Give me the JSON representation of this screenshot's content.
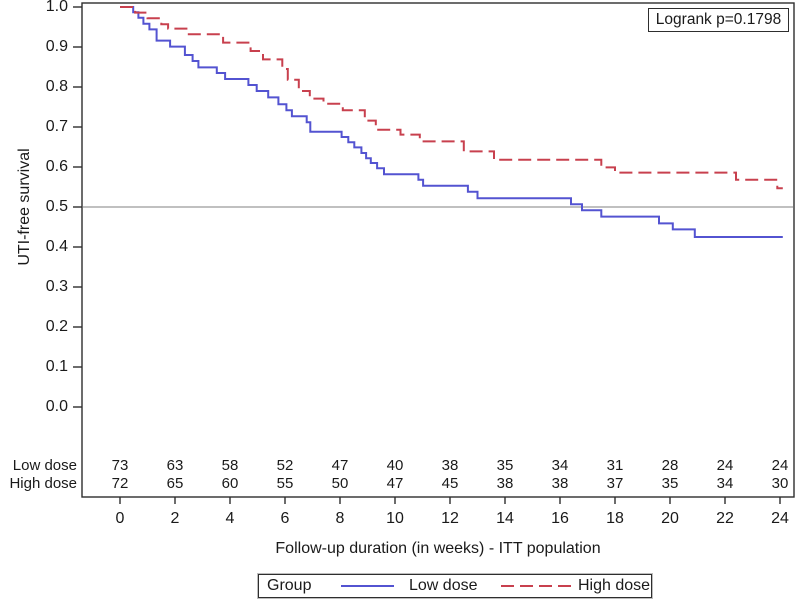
{
  "annotation": {
    "p_value": "Logrank p=0.1798"
  },
  "y_axis": {
    "title": "UTI-free survival",
    "tick_labels": [
      "1.0",
      "0.9",
      "0.8",
      "0.7",
      "0.6",
      "0.5",
      "0.4",
      "0.3",
      "0.2",
      "0.1",
      "0.0"
    ]
  },
  "x_axis": {
    "title": "Follow-up duration (in weeks) - ITT population",
    "tick_labels": [
      "0",
      "2",
      "4",
      "6",
      "8",
      "10",
      "12",
      "14",
      "16",
      "18",
      "20",
      "22",
      "24"
    ]
  },
  "legend": {
    "title": "Group",
    "entries": [
      {
        "label": "Low dose",
        "color": "#5353d1",
        "style": "solid"
      },
      {
        "label": "High dose",
        "color": "#c8404e",
        "style": "dashed"
      }
    ]
  },
  "colors": {
    "frame": "#2e2e2e",
    "reference_line": "#9a9a9a",
    "low_dose": "#5353d1",
    "high_dose": "#c8404e"
  },
  "chart_data": {
    "type": "line",
    "subtype": "kaplan-meier-step",
    "title": "",
    "xlabel": "Follow-up duration (in weeks) - ITT population",
    "ylabel": "UTI-free survival",
    "xlim": [
      0,
      24
    ],
    "ylim": [
      0.0,
      1.0
    ],
    "x_tick_step": 2,
    "y_tick_step": 0.1,
    "grid": false,
    "reference_line_y": 0.5,
    "end_of_followup_week": 24.1,
    "annotation": "Logrank p=0.1798",
    "legend_position": "bottom",
    "series": [
      {
        "name": "Low dose",
        "color": "#5353d1",
        "line_style": "solid",
        "points": [
          [
            0,
            1.0
          ],
          [
            0.48,
            0.987
          ],
          [
            0.67,
            0.973
          ],
          [
            0.85,
            0.958
          ],
          [
            1.07,
            0.944
          ],
          [
            1.33,
            0.916
          ],
          [
            1.82,
            0.901
          ],
          [
            2.36,
            0.88
          ],
          [
            2.64,
            0.865
          ],
          [
            2.85,
            0.849
          ],
          [
            3.52,
            0.835
          ],
          [
            3.82,
            0.82
          ],
          [
            4.67,
            0.805
          ],
          [
            4.97,
            0.79
          ],
          [
            5.39,
            0.774
          ],
          [
            5.76,
            0.757
          ],
          [
            6.05,
            0.742
          ],
          [
            6.25,
            0.727
          ],
          [
            6.79,
            0.712
          ],
          [
            6.92,
            0.688
          ],
          [
            8.06,
            0.675
          ],
          [
            8.3,
            0.662
          ],
          [
            8.52,
            0.649
          ],
          [
            8.78,
            0.635
          ],
          [
            8.95,
            0.622
          ],
          [
            9.12,
            0.61
          ],
          [
            9.35,
            0.597
          ],
          [
            9.6,
            0.582
          ],
          [
            10.85,
            0.568
          ],
          [
            11.02,
            0.553
          ],
          [
            12.65,
            0.538
          ],
          [
            13.0,
            0.522
          ],
          [
            16.4,
            0.507
          ],
          [
            16.8,
            0.492
          ],
          [
            17.5,
            0.476
          ],
          [
            19.6,
            0.459
          ],
          [
            20.1,
            0.444
          ],
          [
            20.9,
            0.425
          ]
        ]
      },
      {
        "name": "High dose",
        "color": "#c8404e",
        "line_style": "dashed",
        "points": [
          [
            0,
            1.0
          ],
          [
            0.55,
            0.986
          ],
          [
            1.0,
            0.972
          ],
          [
            1.5,
            0.957
          ],
          [
            1.75,
            0.946
          ],
          [
            2.5,
            0.932
          ],
          [
            3.75,
            0.911
          ],
          [
            4.75,
            0.89
          ],
          [
            5.2,
            0.869
          ],
          [
            5.9,
            0.845
          ],
          [
            6.1,
            0.818
          ],
          [
            6.5,
            0.79
          ],
          [
            6.9,
            0.771
          ],
          [
            7.4,
            0.758
          ],
          [
            8.1,
            0.742
          ],
          [
            8.9,
            0.716
          ],
          [
            9.3,
            0.693
          ],
          [
            10.2,
            0.681
          ],
          [
            10.9,
            0.664
          ],
          [
            12.5,
            0.639
          ],
          [
            13.6,
            0.618
          ],
          [
            17.5,
            0.599
          ],
          [
            18.0,
            0.586
          ],
          [
            22.4,
            0.568
          ],
          [
            23.9,
            0.547
          ]
        ]
      }
    ],
    "number_at_risk": {
      "time_points": [
        0,
        2,
        4,
        6,
        8,
        10,
        12,
        14,
        16,
        18,
        20,
        22,
        24
      ],
      "rows": [
        {
          "label": "Low dose",
          "counts": [
            73,
            63,
            58,
            52,
            47,
            40,
            38,
            35,
            34,
            31,
            28,
            24,
            24
          ]
        },
        {
          "label": "High dose",
          "counts": [
            72,
            65,
            60,
            55,
            50,
            47,
            45,
            38,
            38,
            37,
            35,
            34,
            30
          ]
        }
      ]
    }
  }
}
